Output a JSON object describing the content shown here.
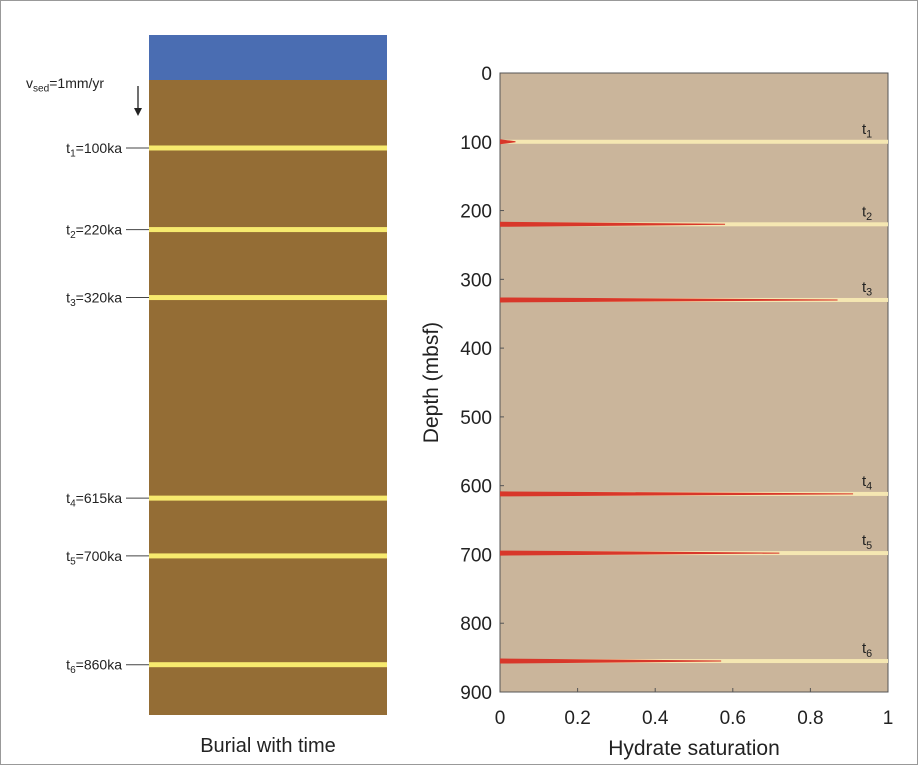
{
  "chart_data": [
    {
      "type": "burial",
      "xlabel": "Burial with time",
      "annotation": {
        "base": "v",
        "sub": "sed",
        "text": "=1mm/yr"
      },
      "ylim": [
        0,
        934
      ],
      "water_color": "#4a6db2",
      "sediment_color": "#946d35",
      "layer_color": "#f7ea6e",
      "layers": [
        {
          "base": "t",
          "sub": "1",
          "text": "=100ka",
          "age": 100
        },
        {
          "base": "t",
          "sub": "2",
          "text": "=220ka",
          "age": 220
        },
        {
          "base": "t",
          "sub": "3",
          "text": "=320ka",
          "age": 320
        },
        {
          "base": "t",
          "sub": "4",
          "text": "=615ka",
          "age": 615
        },
        {
          "base": "t",
          "sub": "5",
          "text": "=700ka",
          "age": 700
        },
        {
          "base": "t",
          "sub": "6",
          "text": "=860ka",
          "age": 860
        }
      ]
    },
    {
      "type": "profile",
      "xlabel": "Hydrate saturation",
      "ylabel": "Depth (mbsf)",
      "xlim": [
        0,
        1
      ],
      "xticks": [
        0,
        0.2,
        0.4,
        0.6,
        0.8,
        1
      ],
      "ylim": [
        0,
        900
      ],
      "yticks": [
        0,
        100,
        200,
        300,
        400,
        500,
        600,
        700,
        800,
        900
      ],
      "y_inverted": true,
      "background": "#cab59b",
      "layer_color": "#f5e7b2",
      "saturation_color": "#d8372a",
      "layers": [
        {
          "base": "t",
          "sub": "1",
          "depth": 100,
          "saturation": 0.04
        },
        {
          "base": "t",
          "sub": "2",
          "depth": 220,
          "saturation": 0.58
        },
        {
          "base": "t",
          "sub": "3",
          "depth": 330,
          "saturation": 0.87
        },
        {
          "base": "t",
          "sub": "4",
          "depth": 612,
          "saturation": 0.91
        },
        {
          "base": "t",
          "sub": "5",
          "depth": 698,
          "saturation": 0.72
        },
        {
          "base": "t",
          "sub": "6",
          "depth": 855,
          "saturation": 0.57
        }
      ]
    }
  ]
}
